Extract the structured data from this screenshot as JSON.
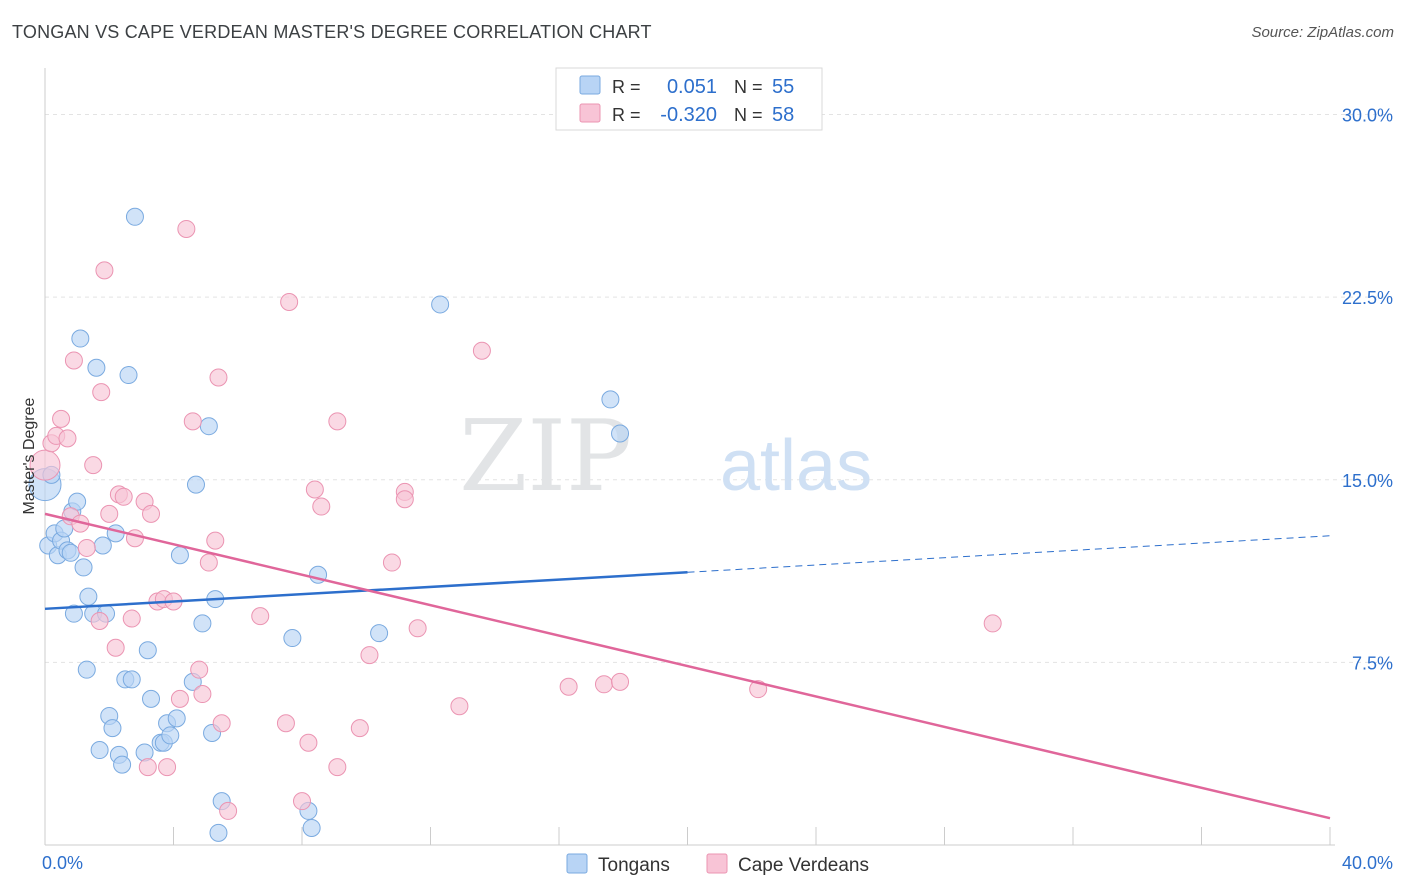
{
  "title": "TONGAN VS CAPE VERDEAN MASTER'S DEGREE CORRELATION CHART",
  "source": "Source: ZipAtlas.com",
  "chart_data": {
    "type": "scatter",
    "title": "TONGAN VS CAPE VERDEAN MASTER'S DEGREE CORRELATION CHART",
    "xlabel": "",
    "ylabel": "Master's Degree",
    "xlim": [
      0,
      40
    ],
    "ylim": [
      0,
      31.5
    ],
    "x_tick_labels": [
      {
        "value": 0,
        "label": "0.0%"
      },
      {
        "value": 40,
        "label": "40.0%"
      }
    ],
    "y_tick_labels": [
      {
        "value": 7.5,
        "label": "7.5%"
      },
      {
        "value": 15,
        "label": "15.0%"
      },
      {
        "value": 22.5,
        "label": "22.5%"
      },
      {
        "value": 30,
        "label": "30.0%"
      }
    ],
    "grid": true,
    "watermark": {
      "part1": "ZIP",
      "part2": "atlas"
    },
    "legend_placement": "top-center",
    "colors": {
      "tongans_fill": "#b8d4f5",
      "tongans_stroke": "#7aaae0",
      "tongans_line": "#2d6fcc",
      "cape_fill": "#f8c4d6",
      "cape_stroke": "#eb94b2",
      "cape_line": "#e0669a",
      "value_text": "#2d6fcc",
      "label_text": "#333333"
    },
    "stats": [
      {
        "r_label": "R =",
        "r_value": "0.051",
        "n_label": "N =",
        "n_value": "55"
      },
      {
        "r_label": "R =",
        "r_value": "-0.320",
        "n_label": "N =",
        "n_value": "58"
      }
    ],
    "series": [
      {
        "name": "Tongans",
        "trend": {
          "x0": 0,
          "y0": 9.7,
          "x1": 20,
          "y1": 11.2,
          "dash_x1": 40,
          "dash_y1": 12.7
        },
        "points": [
          [
            0,
            14.8
          ],
          [
            0.1,
            12.3
          ],
          [
            0.2,
            15.2
          ],
          [
            0.3,
            12.8
          ],
          [
            0.4,
            11.9
          ],
          [
            0.5,
            12.5
          ],
          [
            0.6,
            13
          ],
          [
            0.7,
            12.1
          ],
          [
            0.8,
            12
          ],
          [
            0.85,
            13.7
          ],
          [
            0.9,
            9.5
          ],
          [
            1,
            14.1
          ],
          [
            1.1,
            20.8
          ],
          [
            1.2,
            11.4
          ],
          [
            1.3,
            7.2
          ],
          [
            1.35,
            10.2
          ],
          [
            1.5,
            9.5
          ],
          [
            1.6,
            19.6
          ],
          [
            1.7,
            3.9
          ],
          [
            1.8,
            12.3
          ],
          [
            1.9,
            9.5
          ],
          [
            2,
            5.3
          ],
          [
            2.1,
            4.8
          ],
          [
            2.2,
            12.8
          ],
          [
            2.3,
            3.7
          ],
          [
            2.4,
            3.3
          ],
          [
            2.5,
            6.8
          ],
          [
            2.6,
            19.3
          ],
          [
            2.7,
            6.8
          ],
          [
            2.8,
            25.8
          ],
          [
            3.1,
            3.8
          ],
          [
            3.2,
            8
          ],
          [
            3.3,
            6
          ],
          [
            3.6,
            4.2
          ],
          [
            3.7,
            4.2
          ],
          [
            3.8,
            5
          ],
          [
            3.9,
            4.5
          ],
          [
            4.1,
            5.2
          ],
          [
            4.2,
            11.9
          ],
          [
            4.6,
            6.7
          ],
          [
            4.7,
            14.8
          ],
          [
            4.9,
            9.1
          ],
          [
            5.1,
            17.2
          ],
          [
            5.3,
            10.1
          ],
          [
            5.2,
            4.6
          ],
          [
            5.4,
            0.5
          ],
          [
            5.5,
            1.8
          ],
          [
            7.7,
            8.5
          ],
          [
            8.2,
            1.4
          ],
          [
            8.3,
            0.7
          ],
          [
            8.5,
            11.1
          ],
          [
            10.4,
            8.7
          ],
          [
            12.3,
            22.2
          ],
          [
            17.6,
            18.3
          ],
          [
            17.9,
            16.9
          ]
        ]
      },
      {
        "name": "Cape Verdeans",
        "trend": {
          "x0": 0,
          "y0": 13.6,
          "x1": 40,
          "y1": 1.1
        },
        "points": [
          [
            0,
            15.6
          ],
          [
            0.2,
            16.5
          ],
          [
            0.35,
            16.8
          ],
          [
            0.5,
            17.5
          ],
          [
            0.7,
            16.7
          ],
          [
            0.8,
            13.5
          ],
          [
            0.9,
            19.9
          ],
          [
            1.1,
            13.2
          ],
          [
            1.3,
            12.2
          ],
          [
            1.5,
            15.6
          ],
          [
            1.7,
            9.2
          ],
          [
            1.75,
            18.6
          ],
          [
            1.85,
            23.6
          ],
          [
            2,
            13.6
          ],
          [
            2.2,
            8.1
          ],
          [
            2.3,
            14.4
          ],
          [
            2.45,
            14.3
          ],
          [
            2.7,
            9.3
          ],
          [
            2.8,
            12.6
          ],
          [
            3.1,
            14.1
          ],
          [
            3.2,
            3.2
          ],
          [
            3.3,
            13.6
          ],
          [
            3.5,
            10
          ],
          [
            3.8,
            3.2
          ],
          [
            3.7,
            10.1
          ],
          [
            4,
            10
          ],
          [
            4.2,
            6
          ],
          [
            4.4,
            25.3
          ],
          [
            4.6,
            17.4
          ],
          [
            4.8,
            7.2
          ],
          [
            4.9,
            6.2
          ],
          [
            5.1,
            11.6
          ],
          [
            5.3,
            12.5
          ],
          [
            5.4,
            19.2
          ],
          [
            5.5,
            5
          ],
          [
            5.7,
            1.4
          ],
          [
            6.7,
            9.4
          ],
          [
            7.5,
            5
          ],
          [
            7.6,
            22.3
          ],
          [
            8,
            1.8
          ],
          [
            8.2,
            4.2
          ],
          [
            8.4,
            14.6
          ],
          [
            8.6,
            13.9
          ],
          [
            9.1,
            17.4
          ],
          [
            9.1,
            3.2
          ],
          [
            9.8,
            4.8
          ],
          [
            10.1,
            7.8
          ],
          [
            10.8,
            11.6
          ],
          [
            11.2,
            14.5
          ],
          [
            11.2,
            14.2
          ],
          [
            11.6,
            8.9
          ],
          [
            12.9,
            5.7
          ],
          [
            13.6,
            20.3
          ],
          [
            16.3,
            6.5
          ],
          [
            17.4,
            6.6
          ],
          [
            17.9,
            6.7
          ],
          [
            22.2,
            6.4
          ],
          [
            29.5,
            9.1
          ]
        ]
      }
    ]
  }
}
